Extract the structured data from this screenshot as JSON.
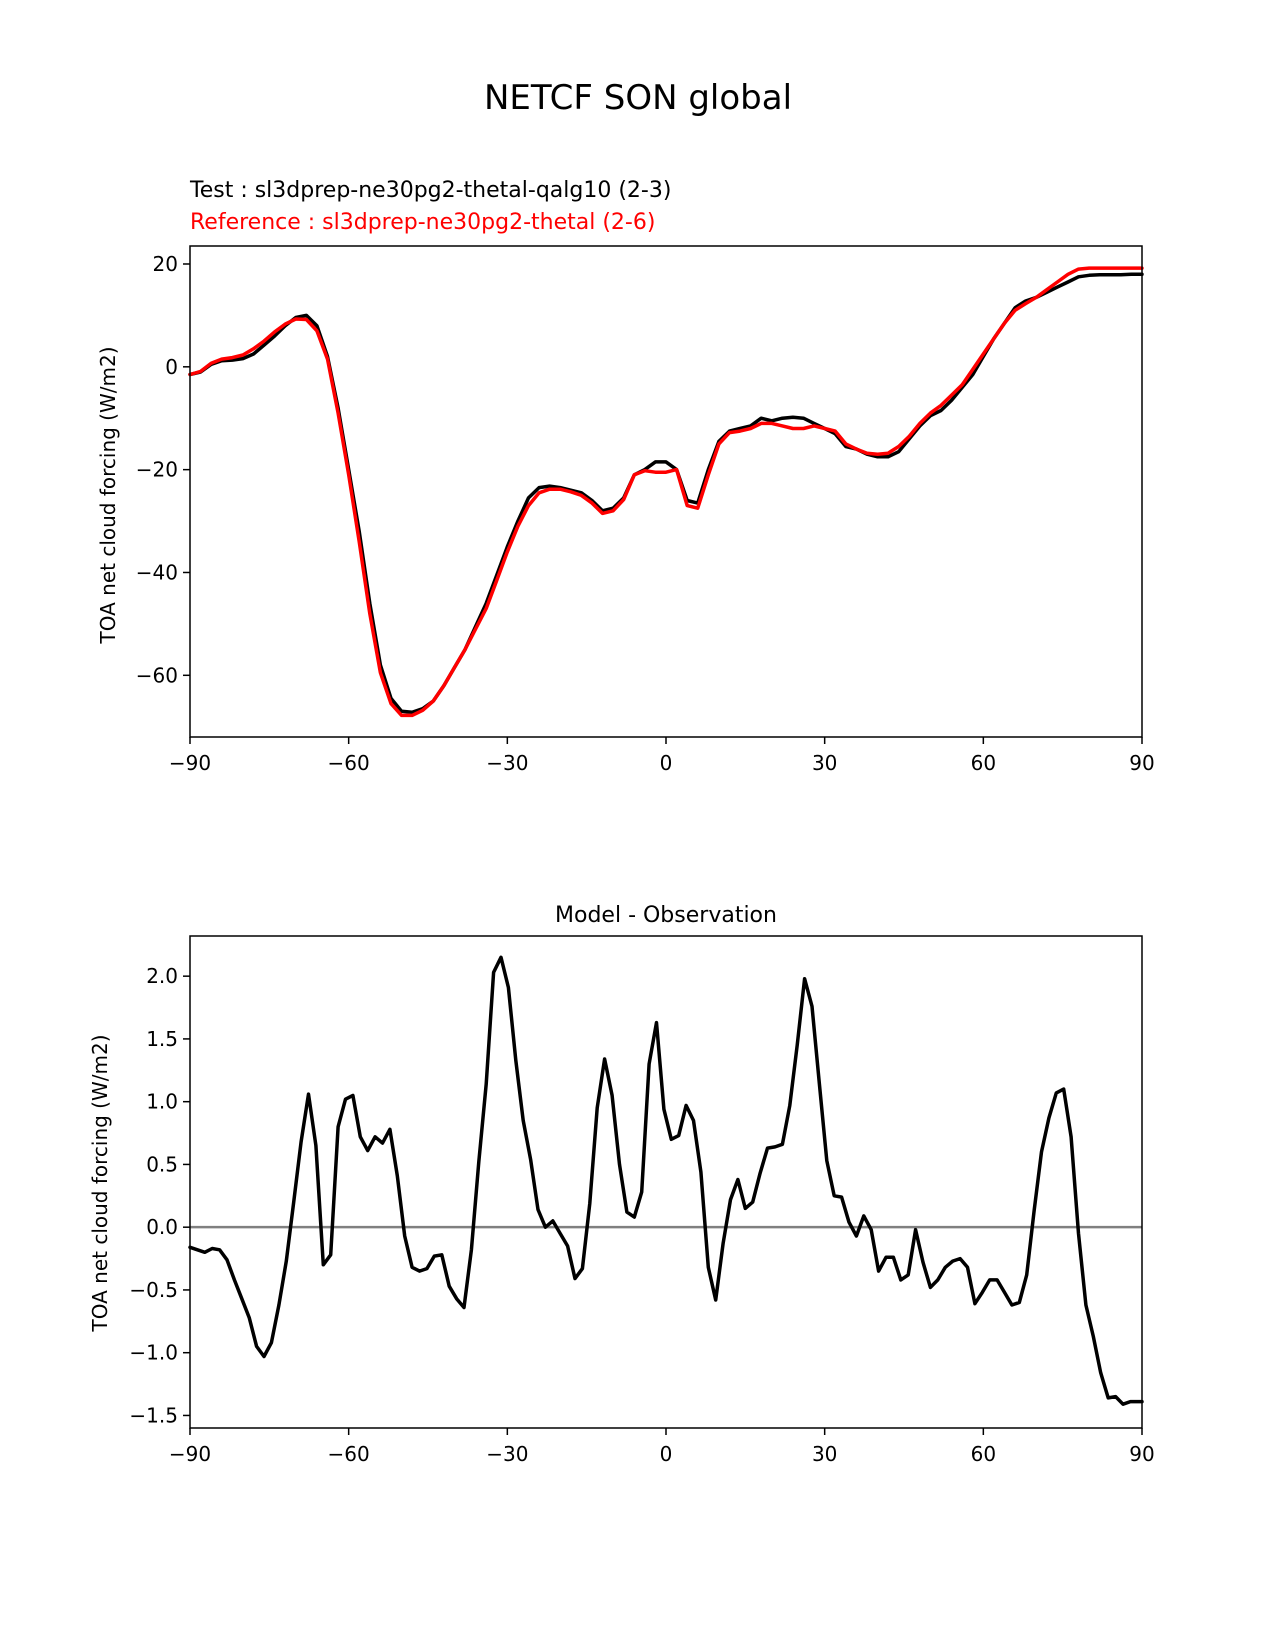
{
  "figure": {
    "title": "NETCF SON global"
  },
  "chart_data": [
    {
      "type": "line",
      "test_label": "Test : sl3dprep-ne30pg2-thetal-qalg10 (2-3)",
      "reference_label": "Reference : sl3dprep-ne30pg2-thetal (2-6)",
      "ylabel": "TOA net cloud forcing (W/m2)",
      "xlabel": "",
      "xlim": [
        -90,
        90
      ],
      "ylim": [
        -72,
        23.5
      ],
      "xticks": [
        -90,
        -60,
        -30,
        0,
        30,
        60,
        90
      ],
      "xtick_labels": [
        "−90",
        "−60",
        "−30",
        "0",
        "30",
        "60",
        "90"
      ],
      "yticks": [
        -60,
        -40,
        -20,
        0,
        20
      ],
      "ytick_labels": [
        "−60",
        "−40",
        "−20",
        "0",
        "20"
      ],
      "grid": false,
      "series": [
        {
          "name": "Test : sl3dprep-ne30pg2-thetal-qalg10 (2-3)",
          "color": "#000000",
          "x": [
            -90,
            -88,
            -86,
            -84,
            -82,
            -80,
            -78,
            -76,
            -74,
            -72,
            -70,
            -68,
            -66,
            -64,
            -62,
            -60,
            -58,
            -56,
            -54,
            -52,
            -50,
            -48,
            -46,
            -44,
            -42,
            -40,
            -38,
            -36,
            -34,
            -32,
            -30,
            -28,
            -26,
            -24,
            -22,
            -20,
            -18,
            -16,
            -14,
            -12,
            -10,
            -8,
            -6,
            -4,
            -2,
            0,
            2,
            4,
            6,
            8,
            10,
            12,
            14,
            16,
            18,
            20,
            22,
            24,
            26,
            28,
            30,
            32,
            34,
            36,
            38,
            40,
            42,
            44,
            46,
            48,
            50,
            52,
            54,
            56,
            58,
            60,
            62,
            64,
            66,
            68,
            70,
            72,
            74,
            76,
            78,
            80,
            82,
            84,
            86,
            88,
            90
          ],
          "y": [
            -1.5,
            -1.0,
            0.5,
            1.2,
            1.3,
            1.6,
            2.5,
            4.2,
            6.0,
            8.0,
            9.6,
            10.0,
            8.0,
            2.0,
            -8.0,
            -20.0,
            -32.0,
            -46.0,
            -58.0,
            -64.5,
            -67.0,
            -67.2,
            -66.5,
            -65.0,
            -62.0,
            -58.5,
            -55.0,
            -50.5,
            -46.0,
            -40.5,
            -35.0,
            -30.0,
            -25.5,
            -23.5,
            -23.2,
            -23.5,
            -24.0,
            -24.5,
            -26.0,
            -28.0,
            -27.5,
            -25.5,
            -21.0,
            -20.0,
            -18.5,
            -18.5,
            -20.0,
            -26.0,
            -26.5,
            -20.0,
            -14.5,
            -12.5,
            -12.0,
            -11.5,
            -10.0,
            -10.5,
            -10.0,
            -9.8,
            -10.0,
            -11.0,
            -12.0,
            -13.0,
            -15.5,
            -16.0,
            -17.0,
            -17.5,
            -17.5,
            -16.5,
            -14.0,
            -11.5,
            -9.5,
            -8.5,
            -6.5,
            -4.0,
            -1.5,
            2.0,
            5.5,
            8.5,
            11.5,
            12.8,
            13.5,
            14.5,
            15.5,
            16.5,
            17.5,
            17.8,
            17.9,
            17.9,
            17.9,
            18.0,
            18.0
          ]
        },
        {
          "name": "Reference : sl3dprep-ne30pg2-thetal (2-6)",
          "color": "#ff0000",
          "x": [
            -90,
            -88,
            -86,
            -84,
            -82,
            -80,
            -78,
            -76,
            -74,
            -72,
            -70,
            -68,
            -66,
            -64,
            -62,
            -60,
            -58,
            -56,
            -54,
            -52,
            -50,
            -48,
            -46,
            -44,
            -42,
            -40,
            -38,
            -36,
            -34,
            -32,
            -30,
            -28,
            -26,
            -24,
            -22,
            -20,
            -18,
            -16,
            -14,
            -12,
            -10,
            -8,
            -6,
            -4,
            -2,
            0,
            2,
            4,
            6,
            8,
            10,
            12,
            14,
            16,
            18,
            20,
            22,
            24,
            26,
            28,
            30,
            32,
            34,
            36,
            38,
            40,
            42,
            44,
            46,
            48,
            50,
            52,
            54,
            56,
            58,
            60,
            62,
            64,
            66,
            68,
            70,
            72,
            74,
            76,
            78,
            80,
            82,
            84,
            86,
            88,
            90
          ],
          "y": [
            -1.5,
            -0.9,
            0.7,
            1.5,
            1.8,
            2.3,
            3.5,
            5.0,
            6.8,
            8.3,
            9.3,
            9.2,
            7.0,
            1.5,
            -9.0,
            -21.0,
            -34.0,
            -48.0,
            -59.5,
            -65.5,
            -67.8,
            -67.8,
            -66.8,
            -65.0,
            -62.0,
            -58.5,
            -55.0,
            -51.0,
            -47.0,
            -41.5,
            -36.0,
            -31.0,
            -27.0,
            -24.5,
            -23.8,
            -23.8,
            -24.3,
            -25.0,
            -26.5,
            -28.5,
            -28.0,
            -25.8,
            -21.0,
            -20.2,
            -20.5,
            -20.5,
            -20.0,
            -27.0,
            -27.5,
            -21.0,
            -15.0,
            -12.8,
            -12.5,
            -12.0,
            -11.0,
            -11.0,
            -11.5,
            -12.0,
            -12.0,
            -11.5,
            -12.0,
            -12.5,
            -15.0,
            -16.0,
            -16.8,
            -17.0,
            -16.8,
            -15.5,
            -13.5,
            -11.0,
            -9.0,
            -7.5,
            -5.5,
            -3.5,
            -0.5,
            2.5,
            5.5,
            8.5,
            11.0,
            12.3,
            13.5,
            15.0,
            16.5,
            18.0,
            19.0,
            19.2,
            19.2,
            19.2,
            19.2,
            19.2,
            19.2
          ]
        }
      ]
    },
    {
      "type": "line",
      "title": "Model - Observation",
      "ylabel": "TOA net cloud forcing (W/m2)",
      "xlabel": "",
      "xlim": [
        -90,
        90
      ],
      "ylim": [
        -1.6,
        2.32
      ],
      "xticks": [
        -90,
        -60,
        -30,
        0,
        30,
        60,
        90
      ],
      "xtick_labels": [
        "−90",
        "−60",
        "−30",
        "0",
        "30",
        "60",
        "90"
      ],
      "yticks": [
        -1.5,
        -1.0,
        -0.5,
        0.0,
        0.5,
        1.0,
        1.5,
        2.0
      ],
      "ytick_labels": [
        "−1.5",
        "−1.0",
        "−0.5",
        "0.0",
        "0.5",
        "1.0",
        "1.5",
        "2.0"
      ],
      "zero_line_color": "#808080",
      "grid": false,
      "series": [
        {
          "color": "#000000",
          "x": [
            -90,
            -88.6,
            -87.2,
            -85.8,
            -84.4,
            -83.0,
            -81.6,
            -80.2,
            -78.8,
            -77.4,
            -76.0,
            -74.6,
            -73.2,
            -71.8,
            -70.4,
            -69.0,
            -67.6,
            -66.2,
            -64.8,
            -63.4,
            -62.0,
            -60.6,
            -59.2,
            -57.8,
            -56.4,
            -55.0,
            -53.6,
            -52.2,
            -50.8,
            -49.4,
            -48.0,
            -46.6,
            -45.2,
            -43.8,
            -42.4,
            -41.0,
            -39.6,
            -38.2,
            -36.8,
            -35.4,
            -34.0,
            -32.6,
            -31.2,
            -29.8,
            -28.4,
            -27.0,
            -25.6,
            -24.2,
            -22.8,
            -21.4,
            -20.0,
            -18.6,
            -17.2,
            -15.8,
            -14.4,
            -13.0,
            -11.6,
            -10.2,
            -8.8,
            -7.4,
            -6.0,
            -4.6,
            -3.2,
            -1.8,
            -0.4,
            1.0,
            2.4,
            3.8,
            5.2,
            6.6,
            8.0,
            9.4,
            10.8,
            12.2,
            13.6,
            15.0,
            16.4,
            17.8,
            19.2,
            20.6,
            22.0,
            23.4,
            24.8,
            26.2,
            27.6,
            29.0,
            30.4,
            31.8,
            33.2,
            34.6,
            36.0,
            37.4,
            38.8,
            40.2,
            41.6,
            43.0,
            44.4,
            45.8,
            47.2,
            48.6,
            50.0,
            51.4,
            52.8,
            54.2,
            55.6,
            57.0,
            58.4,
            59.8,
            61.2,
            62.6,
            64.0,
            65.4,
            66.8,
            68.2,
            69.6,
            71.0,
            72.4,
            73.8,
            75.2,
            76.6,
            78.0,
            79.4,
            80.8,
            82.2,
            83.6,
            85.0,
            86.4,
            87.8,
            89.2,
            90.0
          ],
          "y": [
            -0.16,
            -0.18,
            -0.2,
            -0.17,
            -0.18,
            -0.26,
            -0.42,
            -0.57,
            -0.72,
            -0.95,
            -1.03,
            -0.92,
            -0.62,
            -0.27,
            0.2,
            0.68,
            1.06,
            0.65,
            -0.3,
            -0.22,
            0.8,
            1.02,
            1.05,
            0.72,
            0.61,
            0.72,
            0.67,
            0.78,
            0.41,
            -0.07,
            -0.32,
            -0.35,
            -0.33,
            -0.23,
            -0.22,
            -0.47,
            -0.57,
            -0.64,
            -0.18,
            0.52,
            1.14,
            2.03,
            2.15,
            1.91,
            1.33,
            0.85,
            0.54,
            0.14,
            0.0,
            0.05,
            -0.05,
            -0.15,
            -0.41,
            -0.33,
            0.19,
            0.95,
            1.34,
            1.05,
            0.5,
            0.12,
            0.08,
            0.28,
            1.3,
            1.63,
            0.94,
            0.7,
            0.73,
            0.97,
            0.85,
            0.44,
            -0.32,
            -0.58,
            -0.13,
            0.22,
            0.38,
            0.15,
            0.2,
            0.43,
            0.63,
            0.64,
            0.66,
            0.97,
            1.45,
            1.98,
            1.76,
            1.14,
            0.53,
            0.25,
            0.24,
            0.04,
            -0.07,
            0.09,
            -0.02,
            -0.35,
            -0.24,
            -0.24,
            -0.42,
            -0.38,
            -0.02,
            -0.28,
            -0.48,
            -0.42,
            -0.32,
            -0.27,
            -0.25,
            -0.32,
            -0.61,
            -0.52,
            -0.42,
            -0.42,
            -0.52,
            -0.62,
            -0.6,
            -0.38,
            0.13,
            0.6,
            0.87,
            1.07,
            1.1,
            0.72,
            -0.05,
            -0.62,
            -0.87,
            -1.16,
            -1.36,
            -1.35,
            -1.41,
            -1.39,
            -1.39,
            -1.39
          ]
        }
      ]
    }
  ]
}
